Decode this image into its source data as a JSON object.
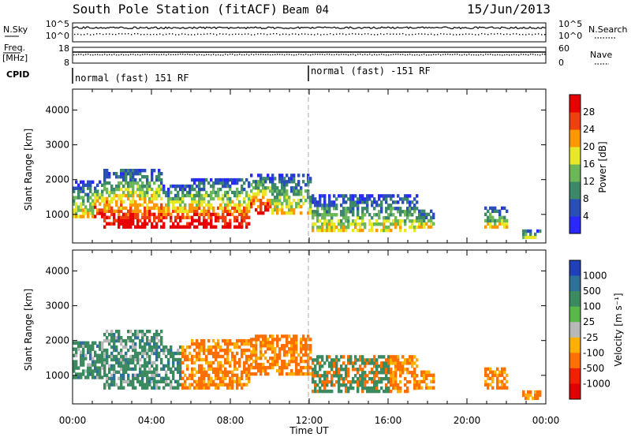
{
  "header": {
    "station": "South Pole Station (fitACF)",
    "beam": "Beam 04",
    "date": "15/Jun/2013"
  },
  "chart_data": [
    {
      "type": "line",
      "panel": "noise",
      "left_label": "N.Sky",
      "right_label": "N.Search",
      "left_ticks": [
        "10^5",
        "10^0"
      ],
      "right_ticks": [
        "10^5",
        "10^0"
      ]
    },
    {
      "type": "line",
      "panel": "frequency",
      "left_label_line1": "Freq.",
      "left_label_line2": "[MHz]",
      "right_label": "Nave",
      "left_ticks": [
        18,
        8
      ],
      "right_ticks": [
        60,
        0
      ]
    },
    {
      "type": "table",
      "panel": "cpid",
      "label": "CPID",
      "segments": [
        {
          "start_hour": 0,
          "end_hour": 12,
          "text": "normal (fast) 151 RF"
        },
        {
          "start_hour": 12,
          "end_hour": 24,
          "text": "normal (fast) -151 RF"
        }
      ]
    },
    {
      "type": "heatmap",
      "panel": "power",
      "ylabel": "Slant Range [km]",
      "ylim": [
        180,
        4600
      ],
      "yticks": [
        1000,
        2000,
        3000,
        4000
      ],
      "xlim": [
        0,
        24
      ],
      "colorbar": {
        "label": "Power [dB]",
        "min": 0,
        "max": 32,
        "ticks": [
          4,
          8,
          12,
          16,
          20,
          24,
          28
        ],
        "colors": [
          "#2828ff",
          "#2a50b8",
          "#3c8868",
          "#6cb858",
          "#e8e828",
          "#ff9800",
          "#f04010",
          "#e80000"
        ]
      }
    },
    {
      "type": "heatmap",
      "panel": "velocity",
      "ylabel": "Slant Range [km]",
      "ylim": [
        180,
        4600
      ],
      "yticks": [
        1000,
        2000,
        3000,
        4000
      ],
      "xlim": [
        0,
        24
      ],
      "xlabel": "Time UT",
      "xticks": [
        "00:00",
        "04:00",
        "08:00",
        "12:00",
        "16:00",
        "20:00",
        "00:00"
      ],
      "colorbar": {
        "label": "Velocity [m s⁻¹]",
        "tick_labels": [
          "1000",
          "500",
          "100",
          "25",
          "-25",
          "-100",
          "-500",
          "-1000"
        ],
        "colors": [
          "#2040b8",
          "#2e7098",
          "#3c8a60",
          "#5ab848",
          "#b8b8b8",
          "#ffb000",
          "#ff7000",
          "#f02000",
          "#e00000"
        ]
      }
    }
  ]
}
